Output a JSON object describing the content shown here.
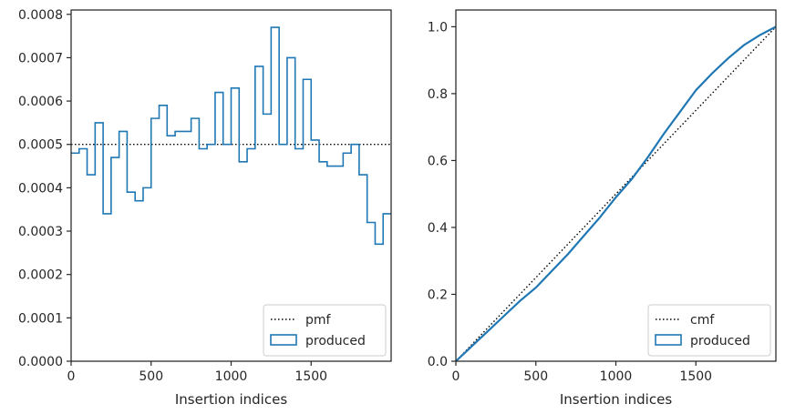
{
  "chart_data": [
    {
      "type": "step",
      "xlabel": "Insertion indices",
      "ylabel": "",
      "xlim": [
        0,
        2000
      ],
      "ylim": [
        0,
        0.00081
      ],
      "xticks": [
        0,
        500,
        1000,
        1500
      ],
      "xtick_labels": [
        "0",
        "500",
        "1000",
        "1500"
      ],
      "yticks": [
        0,
        0.0001,
        0.0002,
        0.0003,
        0.0004,
        0.0005,
        0.0006,
        0.0007,
        0.0008
      ],
      "ytick_labels": [
        "0.0000",
        "0.0001",
        "0.0002",
        "0.0003",
        "0.0004",
        "0.0005",
        "0.0006",
        "0.0007",
        "0.0008"
      ],
      "grid": false,
      "legend_position": "lower right",
      "reference": {
        "name": "pmf",
        "value": 0.0005,
        "style": "dotted",
        "color": "#000000"
      },
      "series": [
        {
          "name": "produced",
          "color": "#1f77b4",
          "bin_width": 50,
          "x_start": 0,
          "values": [
            0.00048,
            0.00049,
            0.00043,
            0.00055,
            0.00034,
            0.00047,
            0.00053,
            0.00039,
            0.00037,
            0.0004,
            0.00056,
            0.00059,
            0.00052,
            0.00053,
            0.00053,
            0.00056,
            0.00049,
            0.0005,
            0.00062,
            0.0005,
            0.00063,
            0.00046,
            0.00049,
            0.00068,
            0.00057,
            0.00077,
            0.0005,
            0.0007,
            0.00049,
            0.00065,
            0.00051,
            0.00046,
            0.00045,
            0.00045,
            0.00048,
            0.0005,
            0.00043,
            0.00032,
            0.00027,
            0.00034
          ]
        }
      ]
    },
    {
      "type": "line",
      "xlabel": "Insertion indices",
      "ylabel": "",
      "xlim": [
        0,
        2000
      ],
      "ylim": [
        0,
        1.05
      ],
      "xticks": [
        0,
        500,
        1000,
        1500
      ],
      "xtick_labels": [
        "0",
        "500",
        "1000",
        "1500"
      ],
      "yticks": [
        0,
        0.2,
        0.4,
        0.6,
        0.8,
        1.0
      ],
      "ytick_labels": [
        "0.0",
        "0.2",
        "0.4",
        "0.6",
        "0.8",
        "1.0"
      ],
      "grid": false,
      "legend_position": "lower right",
      "reference": {
        "name": "cmf",
        "style": "dotted",
        "color": "#000000",
        "x": [
          0,
          2000
        ],
        "y": [
          0,
          1.0
        ]
      },
      "series": [
        {
          "name": "produced",
          "color": "#1f77b4",
          "x": [
            0,
            100,
            200,
            300,
            400,
            500,
            600,
            700,
            800,
            900,
            1000,
            1100,
            1200,
            1300,
            1400,
            1500,
            1600,
            1700,
            1800,
            1900,
            2000
          ],
          "y": [
            0,
            0.045,
            0.09,
            0.135,
            0.18,
            0.22,
            0.27,
            0.32,
            0.375,
            0.43,
            0.49,
            0.545,
            0.61,
            0.68,
            0.745,
            0.81,
            0.86,
            0.905,
            0.945,
            0.975,
            1.0
          ]
        }
      ]
    }
  ]
}
